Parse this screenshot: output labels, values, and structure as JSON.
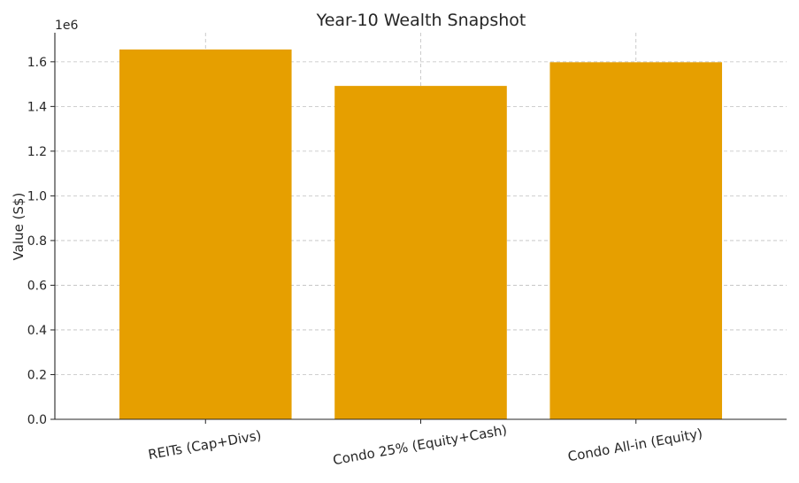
{
  "chart_data": {
    "type": "bar",
    "title": "Year-10 Wealth Snapshot",
    "xlabel": "",
    "ylabel": "Value (S$)",
    "y_offset_label": "1e6",
    "categories": [
      "REITs (Cap+Divs)",
      "Condo 25% (Equity+Cash)",
      "Condo All-in (Equity)"
    ],
    "values": [
      1655000,
      1492000,
      1598000
    ],
    "ylim": [
      0,
      1730000
    ],
    "y_ticks": [
      0,
      200000,
      400000,
      600000,
      800000,
      1000000,
      1200000,
      1400000,
      1600000
    ],
    "y_tick_labels": [
      "0.0",
      "0.2",
      "0.4",
      "0.6",
      "0.8",
      "1.0",
      "1.2",
      "1.4",
      "1.6"
    ],
    "grid": true,
    "legend": "none",
    "bar_color": "#E69F00"
  }
}
